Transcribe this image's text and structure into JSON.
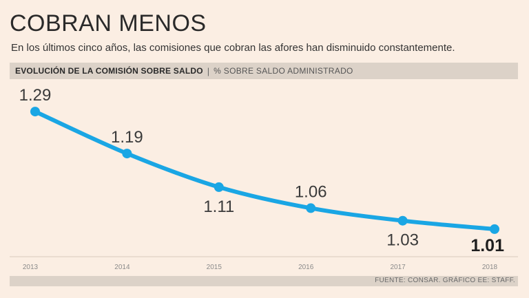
{
  "header": {
    "title": "COBRAN MENOS",
    "subtitle": "En los últimos cinco años, las comisiones que cobran las afores han disminuido constantemente."
  },
  "chart_header": {
    "label": "EVOLUCIÓN DE LA COMISIÓN SOBRE SALDO",
    "separator": "|",
    "unit": "% SOBRE SALDO ADMINISTRADO"
  },
  "footer": {
    "source": "FUENTE: CONSAR. GRÁFICO EE: STAFF."
  },
  "colors": {
    "line": "#1aa6e4",
    "background": "#fbeee3",
    "band": "#dcd2c8"
  },
  "chart_data": {
    "type": "line",
    "title": "EVOLUCIÓN DE LA COMISIÓN SOBRE SALDO",
    "ylabel": "% SOBRE SALDO ADMINISTRADO",
    "xlabel": "",
    "categories": [
      "2013",
      "2014",
      "2015",
      "2016",
      "2017",
      "2018"
    ],
    "values": [
      1.29,
      1.19,
      1.11,
      1.06,
      1.03,
      1.01
    ],
    "data_labels": [
      "1.29",
      "1.19",
      "1.11",
      "1.06",
      "1.03",
      "1.01"
    ],
    "label_positions": [
      "above",
      "above",
      "below",
      "above",
      "below",
      "below"
    ],
    "highlight_last": true,
    "ylim": [
      1.0,
      1.3
    ],
    "grid": false
  }
}
